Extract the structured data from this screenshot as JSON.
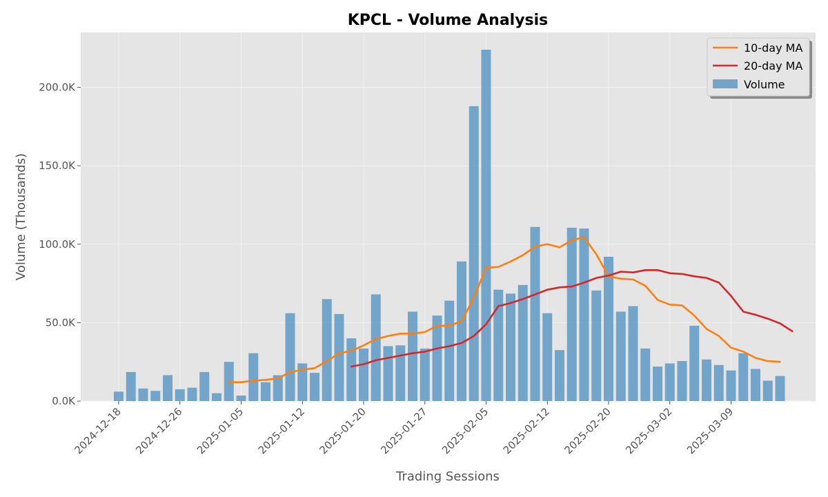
{
  "chart_data": {
    "type": "bar",
    "title": "KPCL - Volume Analysis",
    "xlabel": "Trading Sessions",
    "ylabel": "Volume (Thousands)",
    "ylim": [
      0,
      235
    ],
    "y_ticks": [
      0,
      50,
      100,
      150,
      200
    ],
    "y_tick_labels": [
      "0.0K",
      "50.0K",
      "100.0K",
      "150.0K",
      "200.0K"
    ],
    "x_tick_labels": [
      "2024-12-18",
      "2024-12-26",
      "2025-01-05",
      "2025-01-12",
      "2025-01-20",
      "2025-01-27",
      "2025-02-05",
      "2025-02-12",
      "2025-02-20",
      "2025-03-02",
      "2025-03-09"
    ],
    "x_tick_sessions": [
      0,
      5,
      10,
      15,
      20,
      25,
      30,
      35,
      40,
      45,
      50
    ],
    "grid": true,
    "legend_position": "top-right",
    "colors": {
      "background": "#e5e5e5",
      "grid": "#f2f2f2",
      "volume": "#5f9ac6",
      "ma10": "#ff7f0e",
      "ma20": "#d62728"
    },
    "series": [
      {
        "name": "Volume",
        "type": "bar",
        "values": [
          6,
          18.5,
          8,
          6.5,
          16.5,
          7.5,
          8.5,
          18.5,
          5,
          25,
          3.5,
          30.5,
          12,
          16.5,
          56,
          24,
          18,
          65,
          55.5,
          40,
          33.5,
          68,
          35,
          35.5,
          57,
          33.5,
          54.5,
          64,
          89,
          188,
          224,
          71,
          68.5,
          74,
          111,
          56,
          32.5,
          110.5,
          110,
          70.5,
          92,
          57,
          60.5,
          33.5,
          22,
          24,
          25.5,
          48,
          26.5,
          23,
          19.5,
          30.5,
          20.5,
          13,
          16
        ]
      },
      {
        "name": "10-day MA",
        "type": "line",
        "start_index": 9,
        "values": [
          12,
          12,
          13,
          13.5,
          14.5,
          18.5,
          20,
          21,
          25.5,
          30.5,
          32,
          35.5,
          39.5,
          41.5,
          43,
          43,
          44,
          48,
          48,
          51,
          66,
          85,
          85.5,
          89,
          93,
          98.5,
          100,
          98,
          102.5,
          104.5,
          93.5,
          79.5,
          78,
          77.5,
          73.5,
          64.5,
          61.5,
          61,
          54.5,
          46,
          41.5,
          34,
          31.5,
          27.5,
          25.5,
          25
        ]
      },
      {
        "name": "20-day MA",
        "type": "line",
        "start_index": 19,
        "values": [
          22,
          23.5,
          26,
          27.5,
          29,
          30.5,
          31.5,
          33.5,
          35,
          37,
          41.5,
          49,
          60.5,
          62.5,
          65,
          68,
          71,
          72.5,
          73,
          75.5,
          78.5,
          80,
          82.5,
          82,
          83.5,
          83.5,
          81.5,
          81,
          79.5,
          78.5,
          75.5,
          67,
          57,
          55,
          52.5,
          49.5,
          44.5
        ]
      }
    ],
    "legend": [
      "10-day MA",
      "20-day MA",
      "Volume"
    ]
  }
}
